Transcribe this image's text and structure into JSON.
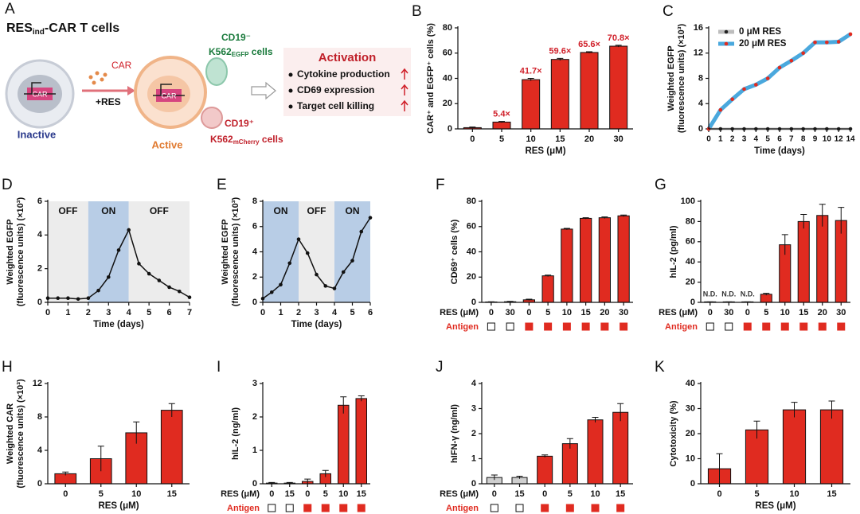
{
  "panel_a": {
    "letter": "A",
    "title": {
      "main": "RES",
      "sub": "ind",
      "rest": "-CAR T cells"
    },
    "car_gene": "CAR",
    "car": "CAR",
    "res": "+RES",
    "inactive": "Inactive",
    "active": "Active",
    "car_gene_active": "CAR",
    "target_neg": {
      "marker": "CD19⁻",
      "cell": "K562",
      "sub": "EGFP",
      "rest": " cells"
    },
    "target_pos": {
      "marker": "CD19⁺",
      "cell": "K562",
      "sub": "mCherry",
      "rest": " cells"
    },
    "activation": {
      "title": "Activation",
      "items": [
        "Cytokine production",
        "CD69 expression",
        "Target cell killing"
      ]
    }
  },
  "chart_data": [
    {
      "panel": "B",
      "type": "bar",
      "ylabel": "CAR⁺ and EGFP⁺ cells (%)",
      "xlabel": "RES (μM)",
      "categories": [
        "0",
        "5",
        "10",
        "15",
        "20",
        "30"
      ],
      "values": [
        1,
        5.4,
        39,
        55,
        60.5,
        65.5
      ],
      "errors": [
        0.5,
        0.5,
        1,
        0.8,
        0.6,
        0.7
      ],
      "annotations": [
        null,
        "5.4×",
        "41.7×",
        "59.6×",
        "65.6×",
        "70.8×"
      ],
      "color": "#e02b20",
      "annotation_color": "#d0202a",
      "ylim": [
        0,
        80
      ],
      "yticks": [
        0,
        20,
        40,
        60,
        80
      ]
    },
    {
      "panel": "C",
      "type": "line",
      "ylabel": [
        "Weighted EGFP",
        "(fluorescence units) (×10³)"
      ],
      "xlabel": "Time (days)",
      "categories": [
        "0",
        "1",
        "2",
        "3",
        "4",
        "5",
        "6",
        "7",
        "8",
        "9",
        "10",
        "12",
        "14"
      ],
      "legend": "upper left",
      "series": [
        {
          "name": "0 μM RES",
          "color": "#bdbdbd",
          "marker_color": "#222",
          "width": 3,
          "values": [
            0,
            0,
            0,
            0,
            0,
            0,
            0,
            0,
            0,
            0,
            0,
            0,
            0
          ]
        },
        {
          "name": "20 μM RES",
          "color": "#4aa8dd",
          "marker_color": "#e02b20",
          "width": 5,
          "values": [
            0,
            3,
            4.7,
            6.3,
            7,
            8,
            9.7,
            10.8,
            12,
            13.7,
            13.7,
            13.8,
            15
          ]
        }
      ],
      "ylim": [
        0,
        16
      ],
      "yticks": [
        0,
        4,
        8,
        12,
        16
      ]
    },
    {
      "panel": "D",
      "type": "line",
      "ylabel": [
        "Weighted EGFP",
        "(fluorescence units) (×10³)"
      ],
      "xlabel": "Time (days)",
      "x": [
        0,
        0.5,
        1,
        1.5,
        2,
        2.5,
        3,
        3.5,
        4,
        4.5,
        5,
        5.5,
        6,
        6.5,
        7
      ],
      "series": [
        {
          "color": "#111",
          "marker_color": "#111",
          "width": 1.5,
          "values": [
            0.25,
            0.25,
            0.25,
            0.2,
            0.25,
            0.7,
            1.5,
            3.1,
            4.3,
            2.3,
            1.7,
            1.3,
            0.9,
            0.65,
            0.3
          ]
        }
      ],
      "regions": [
        {
          "label": "OFF",
          "start": 0,
          "end": 2,
          "color": "#ececec"
        },
        {
          "label": "ON",
          "start": 2,
          "end": 4,
          "color": "#b8cde6"
        },
        {
          "label": "OFF",
          "start": 4,
          "end": 7,
          "color": "#ececec"
        }
      ],
      "xlim": [
        0,
        7
      ],
      "xticks": [
        0,
        1,
        2,
        3,
        4,
        5,
        6,
        7
      ],
      "ylim": [
        0,
        6
      ],
      "yticks": [
        0,
        2,
        4,
        6
      ]
    },
    {
      "panel": "E",
      "type": "line",
      "ylabel": [
        "Weighted EGFP",
        "(fluorescence units) (×10³)"
      ],
      "xlabel": "Time (days)",
      "x": [
        0,
        0.5,
        1,
        1.5,
        2,
        2.5,
        3,
        3.5,
        4,
        4.5,
        5,
        5.5,
        6
      ],
      "series": [
        {
          "color": "#111",
          "marker_color": "#111",
          "width": 1.5,
          "values": [
            0.3,
            0.8,
            1.4,
            3.1,
            5.0,
            3.9,
            2.2,
            1.3,
            1.1,
            2.4,
            3.3,
            5.6,
            6.7
          ]
        }
      ],
      "regions": [
        {
          "label": "ON",
          "start": 0,
          "end": 2,
          "color": "#b8cde6"
        },
        {
          "label": "OFF",
          "start": 2,
          "end": 4,
          "color": "#ececec"
        },
        {
          "label": "ON",
          "start": 4,
          "end": 6,
          "color": "#b8cde6"
        }
      ],
      "xlim": [
        0,
        6
      ],
      "xticks": [
        0,
        1,
        2,
        3,
        4,
        5,
        6
      ],
      "ylim": [
        0,
        8
      ],
      "yticks": [
        0,
        2,
        4,
        6,
        8
      ]
    },
    {
      "panel": "F",
      "type": "bar",
      "ylabel": "CD69⁺ cells (%)",
      "row_labels": [
        "RES (μM)",
        "Antigen"
      ],
      "categories": [
        "0",
        "30",
        "0",
        "5",
        "10",
        "15",
        "20",
        "30"
      ],
      "antigen": [
        false,
        false,
        true,
        true,
        true,
        true,
        true,
        true
      ],
      "values": [
        0.3,
        0.5,
        2,
        21,
        58,
        66.5,
        67,
        68.5
      ],
      "errors": [
        0.2,
        0.3,
        0.5,
        0.6,
        0.6,
        0.5,
        0.6,
        0.6
      ],
      "color": "#e02b20",
      "off_color": "#cfcfcf",
      "ylim": [
        0,
        80
      ],
      "yticks": [
        0,
        20,
        40,
        60,
        80
      ]
    },
    {
      "panel": "G",
      "type": "bar",
      "ylabel": "hIL-2 (pg/ml)",
      "row_labels": [
        "RES (μM)",
        "Antigen"
      ],
      "categories": [
        "0",
        "30",
        "0",
        "5",
        "10",
        "15",
        "20",
        "30"
      ],
      "antigen": [
        false,
        false,
        true,
        true,
        true,
        true,
        true,
        true
      ],
      "values": [
        0.5,
        0.5,
        0.5,
        8,
        57,
        80,
        86,
        81
      ],
      "errors": [
        0,
        0,
        0,
        1,
        10,
        7,
        11,
        13
      ],
      "annotations": [
        "N.D.",
        "N.D.",
        "N.D.",
        null,
        null,
        null,
        null,
        null
      ],
      "annotation_color": "#333",
      "color": "#e02b20",
      "off_color": "#cfcfcf",
      "ylim": [
        0,
        100
      ],
      "yticks": [
        0,
        20,
        40,
        60,
        80,
        100
      ]
    },
    {
      "panel": "H",
      "type": "bar",
      "ylabel": [
        "Weighted CAR",
        "(fluorescence units) (×10³)"
      ],
      "xlabel": "RES (μM)",
      "categories": [
        "0",
        "5",
        "10",
        "15"
      ],
      "values": [
        1.2,
        3.0,
        6.1,
        8.8
      ],
      "errors": [
        0.2,
        1.5,
        1.3,
        0.8
      ],
      "color": "#e02b20",
      "ylim": [
        0,
        12
      ],
      "yticks": [
        0,
        4,
        8,
        12
      ]
    },
    {
      "panel": "I",
      "type": "bar",
      "ylabel": "hIL-2 (ng/ml)",
      "row_labels": [
        "RES (μM)",
        "Antigen"
      ],
      "categories": [
        "0",
        "15",
        "0",
        "5",
        "10",
        "15"
      ],
      "antigen": [
        false,
        false,
        true,
        true,
        true,
        true
      ],
      "values": [
        0.02,
        0.02,
        0.07,
        0.3,
        2.35,
        2.55
      ],
      "errors": [
        0.02,
        0.02,
        0.07,
        0.1,
        0.25,
        0.08
      ],
      "color": "#e02b20",
      "off_color": "#cfcfcf",
      "ylim": [
        0,
        3
      ],
      "yticks": [
        0,
        1,
        2,
        3
      ]
    },
    {
      "panel": "J",
      "type": "bar",
      "ylabel": "hIFN-γ (ng/ml)",
      "row_labels": [
        "RES (μM)",
        "Antigen"
      ],
      "categories": [
        "0",
        "15",
        "0",
        "5",
        "10",
        "15"
      ],
      "antigen": [
        false,
        false,
        true,
        true,
        true,
        true
      ],
      "values": [
        0.25,
        0.25,
        1.1,
        1.6,
        2.55,
        2.85
      ],
      "errors": [
        0.1,
        0.05,
        0.05,
        0.2,
        0.1,
        0.35
      ],
      "color": "#e02b20",
      "off_color": "#cfcfcf",
      "ylim": [
        0,
        4
      ],
      "yticks": [
        0,
        1,
        2,
        3,
        4
      ]
    },
    {
      "panel": "K",
      "type": "bar",
      "ylabel": "Cytotoxicity (%)",
      "xlabel": "RES (μM)",
      "categories": [
        "0",
        "5",
        "10",
        "15"
      ],
      "values": [
        6,
        21.5,
        29.5,
        29.5
      ],
      "errors": [
        6,
        3.5,
        3,
        3.5
      ],
      "color": "#e02b20",
      "ylim": [
        0,
        40
      ],
      "yticks": [
        0,
        10,
        20,
        30,
        40
      ]
    }
  ]
}
